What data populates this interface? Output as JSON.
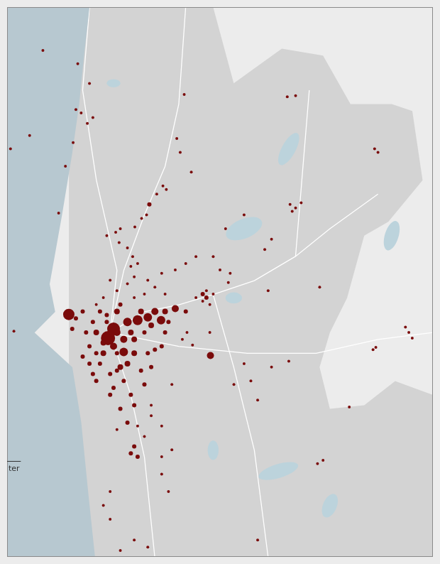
{
  "chart_data": {
    "type": "bubble",
    "x": [
      11.756,
      11.869,
      11.907,
      11.863,
      11.88,
      11.918,
      11.9,
      11.854,
      11.829,
      11.713,
      11.651,
      11.807,
      12.214,
      12.19,
      12.201,
      12.237,
      12.145,
      12.125,
      12.156,
      12.101,
      12.092,
      12.076,
      12.054,
      12.007,
      11.992,
      11.963,
      12.003,
      12.03,
      12.047,
      12.041,
      12.063,
      12.052,
      12.03,
      11.996,
      11.952,
      11.929,
      11.974,
      12.007,
      12.052,
      12.085,
      12.096,
      12.119,
      12.141,
      12.185,
      12.219,
      12.252,
      12.308,
      12.33,
      12.363,
      12.357,
      12.308,
      12.286,
      12.274,
      12.297,
      12.348,
      12.408,
      12.475,
      12.497,
      12.486,
      12.557,
      12.575,
      12.593,
      12.564,
      12.548,
      12.575,
      12.831,
      12.842,
      12.942,
      12.953,
      12.931,
      12.826,
      12.835,
      12.749,
      12.653,
      12.664,
      12.646,
      12.553,
      12.497,
      12.43,
      12.375,
      12.241,
      12.208,
      12.297,
      12.223,
      12.408,
      12.452,
      12.174,
      12.107,
      12.141,
      12.174,
      11.84,
      11.967,
      11.985,
      12.018,
      12.063,
      12.096,
      12.139,
      12.185,
      12.299,
      12.03,
      11.929,
      11.952,
      12.007,
      11.941,
      11.918,
      12.119,
      12.152,
      12.085,
      12.052,
      11.996,
      11.963,
      11.907,
      11.896,
      11.974,
      12.018,
      12.041,
      12.052,
      12.085,
      12.096,
      12.119,
      12.141,
      12.107,
      12.152,
      12.074,
      11.996,
      11.963,
      11.941,
      11.863,
      11.851,
      11.885,
      11.929,
      11.974,
      12.007,
      12.03,
      12.085,
      12.107,
      12.141,
      12.052,
      12.063,
      12.041,
      12.063,
      11.996,
      11.974,
      11.952,
      11.974,
      12.141,
      12.163,
      12.052,
      12.007,
      12.096,
      12.452,
      11.662,
      12.152,
      11.907,
      11.918,
      11.985,
      11.885,
      12.041,
      12.163,
      12.219,
      12.252,
      12.274,
      12.286,
      11.996,
      12.018,
      11.952,
      11.985,
      12.074,
      12.107,
      11.929,
      12.03,
      12.052,
      11.996
    ],
    "values": [
      58.195,
      58.172,
      58.138,
      58.093,
      58.087,
      58.079,
      58.069,
      58.036,
      57.995,
      58.048,
      58.025,
      57.914,
      58.119,
      58.043,
      58.019,
      57.985,
      57.961,
      57.947,
      57.955,
      57.929,
      57.911,
      57.905,
      57.89,
      57.887,
      57.881,
      57.875,
      57.863,
      57.854,
      57.839,
      57.822,
      57.827,
      57.804,
      57.792,
      57.78,
      57.768,
      57.756,
      57.798,
      57.756,
      57.768,
      57.774,
      57.798,
      57.786,
      57.81,
      57.816,
      57.827,
      57.839,
      57.839,
      57.816,
      57.81,
      57.794,
      57.774,
      57.768,
      57.762,
      57.756,
      57.887,
      57.911,
      57.851,
      57.869,
      57.78,
      57.929,
      57.923,
      57.932,
      57.917,
      58.115,
      58.117,
      58.025,
      58.019,
      57.708,
      57.698,
      57.717,
      57.678,
      57.682,
      57.579,
      57.786,
      57.487,
      57.481,
      57.658,
      57.648,
      57.624,
      57.618,
      57.686,
      57.696,
      57.708,
      57.708,
      57.654,
      57.591,
      57.618,
      57.582,
      57.546,
      57.505,
      57.739,
      57.698,
      57.714,
      57.674,
      57.729,
      57.734,
      57.729,
      57.749,
      57.668,
      57.726,
      57.708,
      57.672,
      57.648,
      57.654,
      57.726,
      57.744,
      57.744,
      57.708,
      57.696,
      57.744,
      57.738,
      57.684,
      57.708,
      57.636,
      57.624,
      57.6,
      57.582,
      57.618,
      57.672,
      57.678,
      57.684,
      57.648,
      57.708,
      57.642,
      57.672,
      57.726,
      57.744,
      57.732,
      57.714,
      57.666,
      57.624,
      57.6,
      57.576,
      57.552,
      57.528,
      57.564,
      57.493,
      57.511,
      57.493,
      57.499,
      57.546,
      57.54,
      57.433,
      57.409,
      57.385,
      57.463,
      57.433,
      57.349,
      57.331,
      57.337,
      57.349,
      57.71,
      57.774,
      57.654,
      57.636,
      57.612,
      57.744,
      57.708,
      57.726,
      57.744,
      57.768,
      57.774,
      57.78,
      57.708,
      57.696,
      57.69,
      57.684,
      57.744,
      57.72,
      57.672,
      57.654,
      57.672,
      57.642
    ],
    "sizes": [
      2,
      2,
      2,
      2,
      2,
      2,
      2,
      2,
      2,
      2,
      2,
      2,
      2,
      2,
      2,
      2,
      2,
      2,
      2,
      3,
      2,
      2,
      2,
      2,
      2,
      2,
      2,
      2,
      2,
      2,
      2,
      2,
      2,
      2,
      2,
      2,
      2,
      3,
      2,
      2,
      2,
      2,
      2,
      2,
      2,
      2,
      2,
      2,
      2,
      2,
      2,
      3,
      2,
      2,
      2,
      2,
      2,
      2,
      2,
      2,
      2,
      2,
      2,
      2,
      2,
      2,
      2,
      2,
      2,
      2,
      2,
      2,
      2,
      2,
      2,
      2,
      2,
      2,
      2,
      2,
      2,
      2,
      2,
      2,
      2,
      2,
      2,
      2,
      2,
      2,
      8,
      10,
      9,
      6,
      7,
      6,
      6,
      5,
      5,
      6,
      4,
      4,
      4,
      3,
      3,
      5,
      4,
      3,
      4,
      4,
      3,
      3,
      3,
      3,
      3,
      3,
      3,
      3,
      3,
      3,
      3,
      3,
      3,
      3,
      3,
      3,
      3,
      3,
      3,
      3,
      3,
      3,
      3,
      3,
      2,
      2,
      2,
      3,
      3,
      3,
      2,
      2,
      2,
      2,
      2,
      2,
      2,
      2,
      2,
      2,
      2,
      2,
      2,
      3,
      3,
      3,
      3,
      4,
      3,
      3,
      2,
      3,
      2,
      5,
      5,
      4,
      5,
      4,
      4,
      3,
      4,
      4,
      3
    ],
    "color": "#7a0b0b",
    "xlim": [
      11.64,
      13.02
    ],
    "ylim": [
      57.32,
      58.27
    ],
    "tick_labels": false,
    "grid": false,
    "annotations": [
      "ter"
    ]
  }
}
